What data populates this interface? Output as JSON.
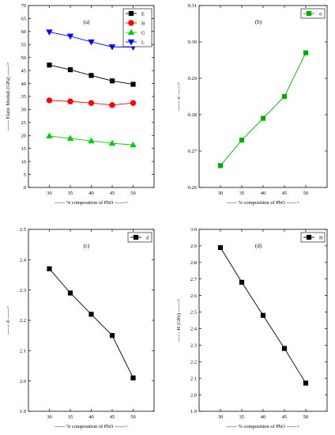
{
  "chart_data": [
    {
      "type": "line",
      "panel_label": "(a)",
      "xlabel": "------ % composition of PbO ------>",
      "ylabel": "------ Elatic Moduli (GPa) ------>",
      "x": [
        30,
        35,
        40,
        45,
        50
      ],
      "xlim": [
        25,
        55
      ],
      "xticks": [
        30,
        35,
        40,
        45,
        50
      ],
      "ylim": [
        0,
        70
      ],
      "yticks": [
        0,
        5,
        10,
        15,
        20,
        25,
        30,
        35,
        40,
        45,
        50,
        55,
        60,
        65,
        70
      ],
      "legend_position": "top-right",
      "series": [
        {
          "name": "E",
          "color": "#000000",
          "marker": "square",
          "values": [
            47.1,
            45.3,
            43.1,
            41.0,
            39.7
          ]
        },
        {
          "name": "B",
          "color": "#ff0000",
          "marker": "circle",
          "values": [
            33.5,
            33.1,
            32.5,
            31.7,
            32.5
          ]
        },
        {
          "name": "G",
          "color": "#00cc00",
          "marker": "triangle-up",
          "values": [
            19.8,
            18.9,
            17.9,
            17.0,
            16.4
          ]
        },
        {
          "name": "L",
          "color": "#0000ff",
          "marker": "triangle-down",
          "values": [
            59.8,
            58.2,
            56.0,
            54.1,
            54.0
          ]
        }
      ]
    },
    {
      "type": "line",
      "panel_label": "(b)",
      "xlabel": "------ % composition of PbO ------>",
      "ylabel": "------ σ ------>",
      "x": [
        30,
        35,
        40,
        45,
        50
      ],
      "xlim": [
        25,
        55
      ],
      "xticks": [
        30,
        35,
        40,
        45,
        50
      ],
      "ylim": [
        0.26,
        0.31
      ],
      "yticks": [
        "0.26",
        "0.27",
        "0.28",
        "0.29",
        "0.30",
        "0.31"
      ],
      "legend_position": "top-right",
      "series": [
        {
          "name": "σ",
          "color": "#00aa00",
          "marker": "square",
          "values": [
            0.266,
            0.273,
            0.279,
            0.285,
            0.297
          ]
        }
      ]
    },
    {
      "type": "line",
      "panel_label": "(c)",
      "xlabel": "------ % composition of PbO ------>",
      "ylabel": "------ d ------>",
      "x": [
        30,
        35,
        40,
        45,
        50
      ],
      "xlim": [
        25,
        55
      ],
      "xticks": [
        30,
        35,
        40,
        45,
        50
      ],
      "ylim": [
        1.9,
        2.5
      ],
      "yticks": [
        "1.9",
        "2.0",
        "2.1",
        "2.2",
        "2.3",
        "2.4",
        "2.5"
      ],
      "legend_position": "top-right",
      "series": [
        {
          "name": "d",
          "color": "#000000",
          "marker": "square",
          "values": [
            2.37,
            2.29,
            2.22,
            2.15,
            2.01
          ]
        }
      ]
    },
    {
      "type": "line",
      "panel_label": "(d)",
      "xlabel": "------ % composition of PbO ------>",
      "ylabel": "------ H (GPa) ------>",
      "x": [
        30,
        35,
        40,
        45,
        50
      ],
      "xlim": [
        25,
        55
      ],
      "xticks": [
        30,
        35,
        40,
        45,
        50
      ],
      "ylim": [
        1.9,
        3.0
      ],
      "yticks": [
        "1.9",
        "2.0",
        "2.1",
        "2.2",
        "2.3",
        "2.4",
        "2.5",
        "2.6",
        "2.7",
        "2.8",
        "2.9",
        "3.0"
      ],
      "legend_position": "top-right",
      "series": [
        {
          "name": "H",
          "color": "#000000",
          "marker": "square",
          "values": [
            2.89,
            2.68,
            2.48,
            2.28,
            2.07
          ]
        }
      ]
    }
  ]
}
